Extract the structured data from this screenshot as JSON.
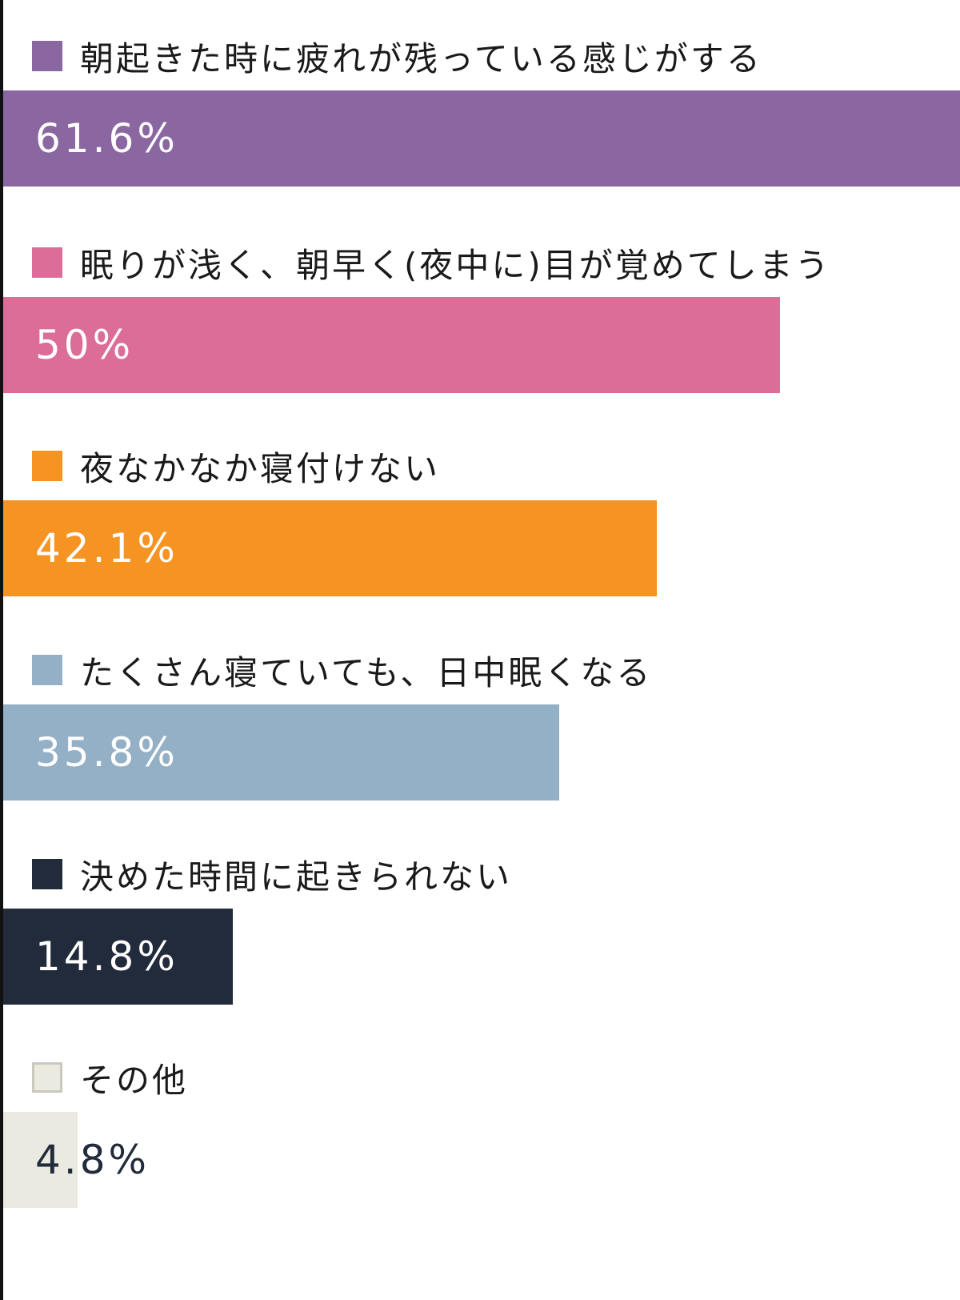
{
  "chart_data": {
    "type": "bar",
    "orientation": "horizontal",
    "xlim": [
      0,
      61.6
    ],
    "grid": false,
    "categories": [
      "朝起きた時に疲れが残っている感じがする",
      "眠りが浅く、朝早く(夜中に)目が覚めてしまう",
      "夜なかなか寝付けない",
      "たくさん寝ていても、日中眠くなる",
      "決めた時間に起きられない",
      "その他"
    ],
    "values": [
      61.6,
      50,
      42.1,
      35.8,
      14.8,
      4.8
    ],
    "value_labels": [
      "61.6%",
      "50%",
      "42.1%",
      "35.8%",
      "14.8%",
      "4.8%"
    ],
    "colors": [
      "#8a67a0",
      "#dc6c98",
      "#f59423",
      "#93b0c6",
      "#222b3b",
      "#eaeae1"
    ],
    "label_colors": [
      "#ffffff",
      "#ffffff",
      "#ffffff",
      "#ffffff",
      "#ffffff",
      "#222b3b"
    ]
  }
}
